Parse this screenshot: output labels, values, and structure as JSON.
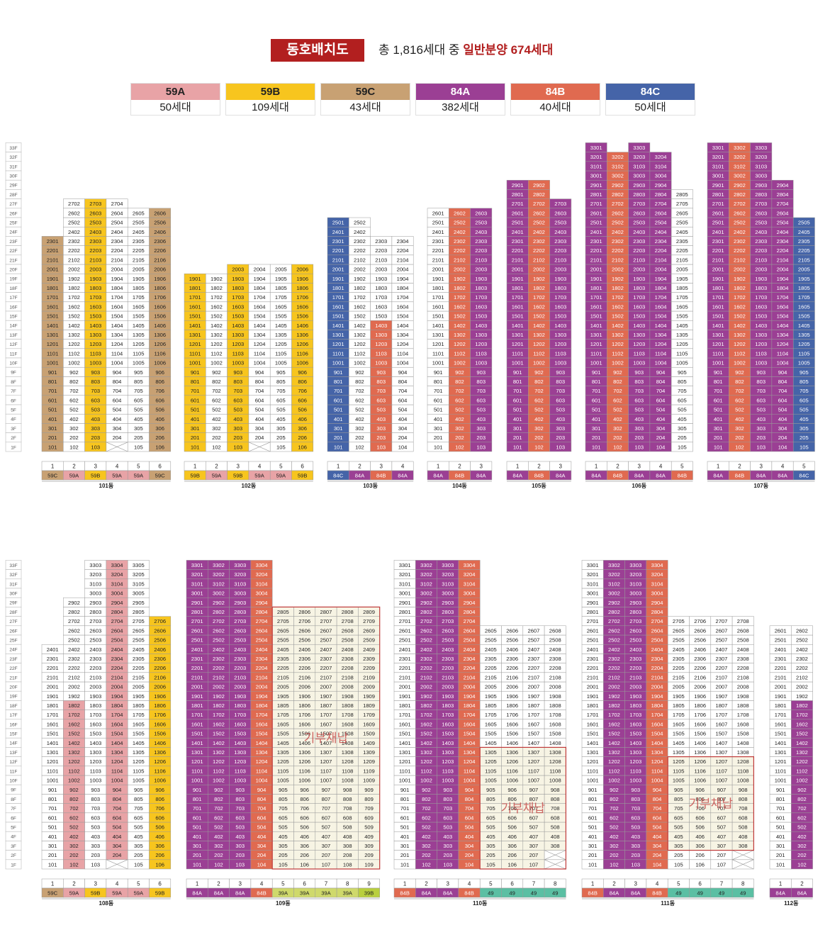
{
  "header": {
    "title": "동호배치도",
    "summary_prefix": "총 1,816세대 중 ",
    "summary_highlight": "일반분양 674세대"
  },
  "colors": {
    "59A": "#e8a3a6",
    "59B": "#f7c51e",
    "59C": "#c8a173",
    "84A": "#9b3f94",
    "84B": "#e06a50",
    "84C": "#4564a8",
    "39A": "#cfd96b",
    "39B": "#b9cf3e",
    "49": "#5bbfa3",
    "dark": "#b21f1f",
    "grid": "#9a9a9a",
    "cell_bg": "#ffffff",
    "pub_bg": "#f7f4e4",
    "pub_border": "#c03a3a"
  },
  "legend": [
    {
      "type": "59A",
      "count": "50세대"
    },
    {
      "type": "59B",
      "count": "109세대"
    },
    {
      "type": "59C",
      "count": "43세대"
    },
    {
      "type": "84A",
      "count": "382세대"
    },
    {
      "type": "84B",
      "count": "40세대"
    },
    {
      "type": "84C",
      "count": "50세대"
    }
  ],
  "floor_labels": [
    "33F",
    "32F",
    "31F",
    "30F",
    "29F",
    "28F",
    "27F",
    "26F",
    "25F",
    "24F",
    "23F",
    "22F",
    "21F",
    "20F",
    "19F",
    "18F",
    "17F",
    "16F",
    "15F",
    "14F",
    "13F",
    "12F",
    "11F",
    "10F",
    "9F",
    "8F",
    "7F",
    "6F",
    "5F",
    "4F",
    "3F",
    "2F",
    "1F"
  ],
  "public_rental_label": "기부채납",
  "buildings": [
    {
      "name": "101동",
      "lines": [
        {
          "no": "1",
          "type": "59C",
          "top": 23,
          "missing": []
        },
        {
          "no": "2",
          "type": "59A",
          "top": 27,
          "missing": []
        },
        {
          "no": "3",
          "type": "59B",
          "top": 27,
          "missing": []
        },
        {
          "no": "4",
          "type": "59A",
          "top": 27,
          "missing": [
            1
          ]
        },
        {
          "no": "5",
          "type": "59A",
          "top": 26,
          "missing": []
        },
        {
          "no": "6",
          "type": "59C",
          "top": 26,
          "missing": []
        }
      ]
    },
    {
      "name": "102동",
      "lines": [
        {
          "no": "1",
          "type": "59B",
          "top": 19,
          "missing": []
        },
        {
          "no": "2",
          "type": "59A",
          "top": 19,
          "missing": []
        },
        {
          "no": "3",
          "type": "59B",
          "top": 20,
          "missing": []
        },
        {
          "no": "4",
          "type": "59A",
          "top": 20,
          "missing": [
            1
          ]
        },
        {
          "no": "5",
          "type": "59A",
          "top": 20,
          "missing": []
        },
        {
          "no": "6",
          "type": "59B",
          "top": 20,
          "missing": []
        }
      ]
    },
    {
      "name": "103동",
      "lines": [
        {
          "no": "1",
          "type": "84C",
          "top": 25,
          "missing": []
        },
        {
          "no": "2",
          "type": "84A",
          "top": 25,
          "missing": []
        },
        {
          "no": "3",
          "type": "84B",
          "top": 23,
          "missing": []
        },
        {
          "no": "4",
          "type": "84A",
          "top": 23,
          "missing": []
        }
      ]
    },
    {
      "name": "104동",
      "lines": [
        {
          "no": "1",
          "type": "84A",
          "top": 26,
          "missing": []
        },
        {
          "no": "2",
          "type": "84B",
          "top": 26,
          "missing": []
        },
        {
          "no": "3",
          "type": "84A",
          "top": 26,
          "missing": []
        }
      ]
    },
    {
      "name": "105동",
      "lines": [
        {
          "no": "1",
          "type": "84A",
          "top": 29,
          "missing": []
        },
        {
          "no": "2",
          "type": "84B",
          "top": 29,
          "missing": []
        },
        {
          "no": "3",
          "type": "84A",
          "top": 27,
          "missing": []
        }
      ]
    },
    {
      "name": "106동",
      "lines": [
        {
          "no": "1",
          "type": "84A",
          "top": 33,
          "missing": []
        },
        {
          "no": "2",
          "type": "84B",
          "top": 32,
          "missing": []
        },
        {
          "no": "3",
          "type": "84A",
          "top": 33,
          "missing": []
        },
        {
          "no": "4",
          "type": "84A",
          "top": 32,
          "missing": []
        },
        {
          "no": "5",
          "type": "84B",
          "top": 28,
          "missing": []
        }
      ]
    },
    {
      "name": "107동",
      "lines": [
        {
          "no": "1",
          "type": "84A",
          "top": 33,
          "missing": []
        },
        {
          "no": "2",
          "type": "84B",
          "top": 33,
          "missing": []
        },
        {
          "no": "3",
          "type": "84A",
          "top": 33,
          "missing": []
        },
        {
          "no": "4",
          "type": "84A",
          "top": 29,
          "missing": []
        },
        {
          "no": "5",
          "type": "84C",
          "top": 25,
          "missing": []
        }
      ]
    },
    {
      "name": "108동",
      "lines": [
        {
          "no": "1",
          "type": "59C",
          "top": 24,
          "missing": []
        },
        {
          "no": "2",
          "type": "59A",
          "top": 29,
          "missing": []
        },
        {
          "no": "3",
          "type": "59B",
          "top": 33,
          "missing": []
        },
        {
          "no": "4",
          "type": "59A",
          "top": 33,
          "missing": [
            1
          ]
        },
        {
          "no": "5",
          "type": "59A",
          "top": 33,
          "missing": []
        },
        {
          "no": "6",
          "type": "59B",
          "top": 27,
          "missing": []
        }
      ]
    },
    {
      "name": "109동",
      "lines": [
        {
          "no": "1",
          "type": "84A",
          "top": 33,
          "missing": []
        },
        {
          "no": "2",
          "type": "84A",
          "top": 33,
          "missing": []
        },
        {
          "no": "3",
          "type": "84A",
          "top": 33,
          "missing": []
        },
        {
          "no": "4",
          "type": "84B",
          "top": 33,
          "missing": []
        },
        {
          "no": "5",
          "type": "39A",
          "top": 28,
          "missing": []
        },
        {
          "no": "6",
          "type": "39A",
          "top": 28,
          "missing": []
        },
        {
          "no": "7",
          "type": "39A",
          "top": 28,
          "missing": []
        },
        {
          "no": "8",
          "type": "39A",
          "top": 28,
          "missing": []
        },
        {
          "no": "9",
          "type": "39B",
          "top": 28,
          "missing": []
        }
      ]
    },
    {
      "name": "110동",
      "lines": [
        {
          "no": "1",
          "type": "84B",
          "top": 33,
          "missing": []
        },
        {
          "no": "2",
          "type": "84A",
          "top": 33,
          "missing": []
        },
        {
          "no": "3",
          "type": "84A",
          "top": 33,
          "missing": []
        },
        {
          "no": "4",
          "type": "84B",
          "top": 33,
          "missing": []
        },
        {
          "no": "5",
          "type": "49",
          "top": 26,
          "missing": []
        },
        {
          "no": "6",
          "type": "49",
          "top": 26,
          "missing": []
        },
        {
          "no": "7",
          "type": "49",
          "top": 26,
          "missing": []
        },
        {
          "no": "8",
          "type": "49",
          "top": 26,
          "missing": [
            1,
            2
          ]
        }
      ]
    },
    {
      "name": "111동",
      "lines": [
        {
          "no": "1",
          "type": "84B",
          "top": 33,
          "missing": []
        },
        {
          "no": "2",
          "type": "84A",
          "top": 33,
          "missing": []
        },
        {
          "no": "3",
          "type": "84A",
          "top": 33,
          "missing": []
        },
        {
          "no": "4",
          "type": "84B",
          "top": 33,
          "missing": []
        },
        {
          "no": "5",
          "type": "49",
          "top": 27,
          "missing": []
        },
        {
          "no": "6",
          "type": "49",
          "top": 27,
          "missing": []
        },
        {
          "no": "7",
          "type": "49",
          "top": 27,
          "missing": []
        },
        {
          "no": "8",
          "type": "49",
          "top": 27,
          "missing": [
            1,
            2
          ]
        }
      ]
    },
    {
      "name": "112동",
      "lines": [
        {
          "no": "1",
          "type": "84A",
          "top": 26,
          "missing": []
        },
        {
          "no": "2",
          "type": "84A",
          "top": 26,
          "missing": []
        }
      ]
    }
  ],
  "accent_units": [
    "103-1304",
    "103-1303",
    "103-1203",
    "103-1103",
    "103-1003",
    "103-903",
    "103-803",
    "103-703",
    "103-603",
    "103-503",
    "103-403",
    "103-303",
    "103-203",
    "103-103",
    "103-1403"
  ]
}
